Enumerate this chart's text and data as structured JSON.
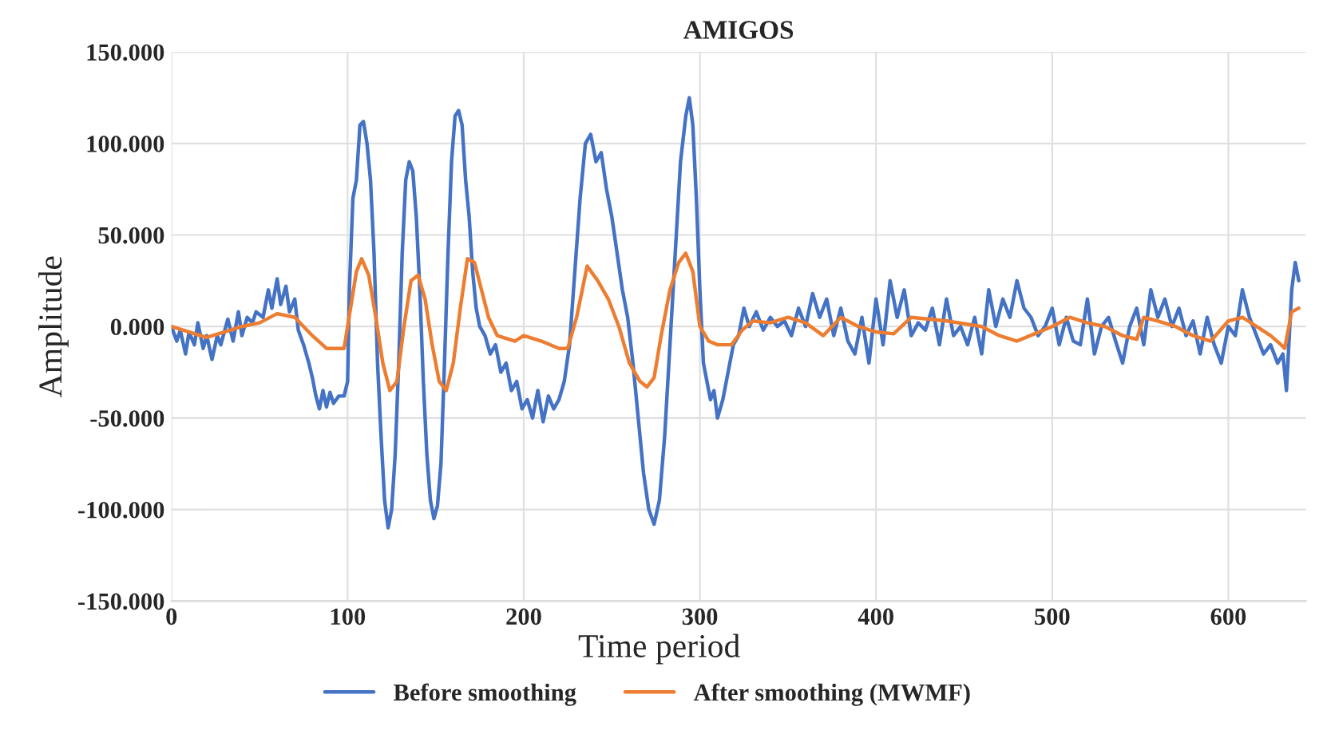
{
  "chart_data": {
    "type": "line",
    "title": "AMIGOS",
    "xlabel": "Time period",
    "ylabel": "Amplitude",
    "xlim": [
      0,
      644
    ],
    "xticks": [
      0,
      100,
      200,
      300,
      400,
      500,
      600
    ],
    "ylim": [
      -150,
      150
    ],
    "yticks": [
      {
        "value": -150,
        "label": "-150.000"
      },
      {
        "value": -100,
        "label": "-100.000"
      },
      {
        "value": -50,
        "label": "-50.000"
      },
      {
        "value": 0,
        "label": "0.000"
      },
      {
        "value": 50,
        "label": "50.000"
      },
      {
        "value": 100,
        "label": "100.000"
      },
      {
        "value": 150,
        "label": "150.000"
      }
    ],
    "grid": true,
    "legend": "bottom",
    "marker": "none",
    "line_style": "solid",
    "series": [
      {
        "name": "Before smoothing",
        "color": "#4472c4",
        "x": [
          0,
          3,
          5,
          8,
          10,
          13,
          15,
          18,
          20,
          23,
          26,
          28,
          32,
          35,
          38,
          40,
          43,
          46,
          48,
          52,
          55,
          57,
          60,
          62,
          65,
          67,
          70,
          72,
          75,
          78,
          80,
          82,
          84,
          86,
          88,
          90,
          92,
          95,
          98,
          100,
          101,
          103,
          105,
          107,
          109,
          111,
          113,
          115,
          117,
          119,
          121,
          123,
          125,
          127,
          129,
          131,
          133,
          135,
          137,
          139,
          141,
          143,
          145,
          147,
          149,
          151,
          153,
          155,
          157,
          159,
          161,
          163,
          165,
          167,
          169,
          171,
          173,
          175,
          178,
          181,
          184,
          187,
          190,
          193,
          196,
          199,
          202,
          205,
          208,
          211,
          214,
          217,
          220,
          223,
          226,
          229,
          232,
          235,
          238,
          241,
          244,
          247,
          250,
          253,
          256,
          259,
          262,
          265,
          268,
          271,
          274,
          277,
          280,
          283,
          286,
          289,
          292,
          294,
          296,
          298,
          300,
          302,
          304,
          306,
          308,
          310,
          313,
          316,
          319,
          322,
          325,
          328,
          332,
          336,
          340,
          344,
          348,
          352,
          356,
          360,
          364,
          368,
          372,
          376,
          380,
          384,
          388,
          392,
          396,
          400,
          404,
          408,
          412,
          416,
          420,
          424,
          428,
          432,
          436,
          440,
          444,
          448,
          452,
          456,
          460,
          464,
          468,
          472,
          476,
          480,
          484,
          488,
          492,
          496,
          500,
          504,
          508,
          512,
          516,
          520,
          524,
          528,
          532,
          536,
          540,
          544,
          548,
          552,
          556,
          560,
          564,
          568,
          572,
          576,
          580,
          584,
          588,
          592,
          596,
          600,
          604,
          608,
          612,
          616,
          620,
          624,
          628,
          631,
          633,
          636,
          638,
          640
        ],
        "values": [
          0,
          -8,
          -2,
          -15,
          -3,
          -10,
          2,
          -12,
          -5,
          -18,
          -5,
          -10,
          4,
          -8,
          8,
          -5,
          5,
          2,
          8,
          5,
          20,
          10,
          26,
          12,
          22,
          8,
          15,
          -2,
          -10,
          -20,
          -28,
          -38,
          -45,
          -35,
          -44,
          -36,
          -42,
          -38,
          -38,
          -30,
          20,
          70,
          80,
          110,
          112,
          100,
          80,
          40,
          -20,
          -60,
          -95,
          -110,
          -100,
          -70,
          -20,
          40,
          80,
          90,
          85,
          60,
          20,
          -30,
          -70,
          -95,
          -105,
          -98,
          -75,
          -20,
          40,
          90,
          115,
          118,
          110,
          80,
          60,
          30,
          10,
          0,
          -5,
          -15,
          -10,
          -25,
          -20,
          -35,
          -30,
          -45,
          -40,
          -50,
          -35,
          -52,
          -38,
          -45,
          -40,
          -30,
          -10,
          30,
          70,
          100,
          105,
          90,
          95,
          75,
          60,
          40,
          20,
          5,
          -20,
          -50,
          -80,
          -100,
          -108,
          -95,
          -60,
          -10,
          40,
          90,
          115,
          125,
          110,
          70,
          20,
          -20,
          -30,
          -40,
          -35,
          -50,
          -40,
          -25,
          -10,
          -5,
          10,
          0,
          8,
          -2,
          5,
          0,
          3,
          -5,
          10,
          0,
          18,
          5,
          15,
          -5,
          10,
          -8,
          -15,
          5,
          -20,
          15,
          -10,
          25,
          5,
          20,
          -5,
          2,
          -2,
          10,
          -10,
          15,
          -5,
          0,
          -10,
          5,
          -15,
          20,
          0,
          15,
          5,
          25,
          10,
          5,
          -5,
          0,
          10,
          -10,
          5,
          -8,
          -10,
          15,
          -15,
          0,
          5,
          -8,
          -20,
          0,
          10,
          -10,
          20,
          5,
          15,
          0,
          10,
          -5,
          3,
          -15,
          5,
          -10,
          -20,
          0,
          -5,
          20,
          5,
          -5,
          -15,
          -10,
          -20,
          -15,
          -35,
          20,
          35,
          25
        ]
      },
      {
        "name": "After smoothing (MWMF)",
        "color": "#ed7d31",
        "x": [
          0,
          10,
          20,
          30,
          40,
          50,
          60,
          70,
          80,
          88,
          98,
          100,
          105,
          108,
          112,
          116,
          120,
          124,
          128,
          132,
          136,
          140,
          144,
          148,
          152,
          156,
          160,
          164,
          168,
          172,
          176,
          180,
          185,
          195,
          200,
          210,
          220,
          225,
          230,
          236,
          242,
          248,
          254,
          260,
          266,
          270,
          274,
          278,
          283,
          288,
          292,
          296,
          300,
          305,
          310,
          318,
          324,
          330,
          340,
          350,
          360,
          370,
          380,
          390,
          400,
          410,
          420,
          430,
          440,
          460,
          470,
          480,
          490,
          500,
          510,
          520,
          530,
          540,
          548,
          552,
          560,
          570,
          580,
          590,
          600,
          608,
          616,
          624,
          630,
          632,
          636,
          640
        ],
        "values": [
          0,
          -3,
          -6,
          -3,
          0,
          2,
          7,
          5,
          -5,
          -12,
          -12,
          0,
          30,
          37,
          28,
          5,
          -20,
          -35,
          -30,
          0,
          25,
          28,
          15,
          -10,
          -30,
          -35,
          -20,
          10,
          37,
          35,
          20,
          5,
          -5,
          -8,
          -5,
          -8,
          -12,
          -12,
          5,
          33,
          25,
          15,
          0,
          -20,
          -30,
          -33,
          -28,
          -5,
          20,
          35,
          40,
          30,
          0,
          -8,
          -10,
          -10,
          -2,
          3,
          2,
          5,
          2,
          -5,
          5,
          0,
          -3,
          -4,
          5,
          4,
          3,
          0,
          -5,
          -8,
          -4,
          0,
          5,
          2,
          0,
          -5,
          -7,
          5,
          3,
          0,
          -5,
          -8,
          3,
          5,
          0,
          -5,
          -10,
          -12,
          8,
          10
        ]
      }
    ]
  }
}
